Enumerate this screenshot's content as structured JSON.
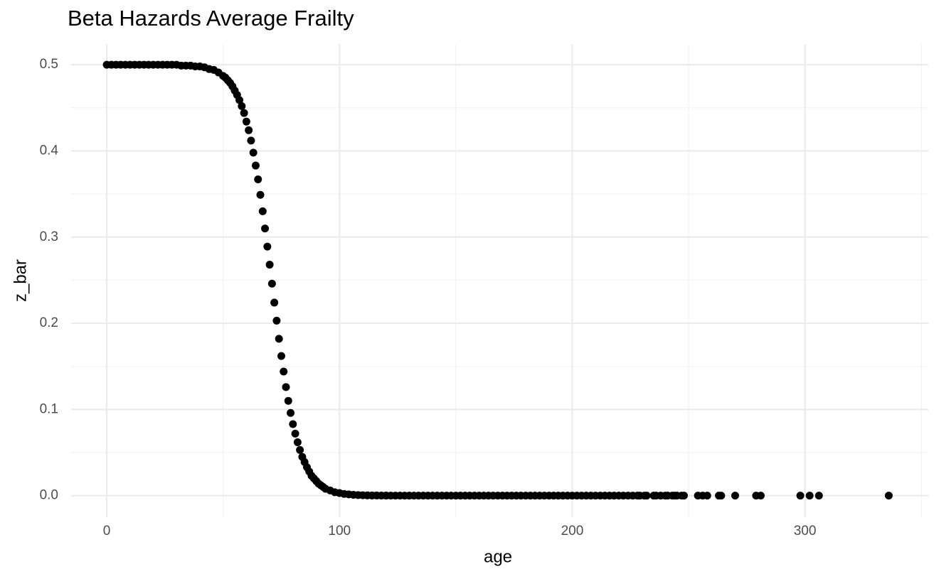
{
  "chart_data": {
    "type": "scatter",
    "title": "Beta Hazards Average Frailty",
    "x_label": "age",
    "y_label": "z_bar",
    "color": "#000000",
    "grid": true,
    "xlim": [
      -15.3,
      353
    ],
    "ylim": [
      -0.025,
      0.524
    ],
    "xticks": [
      0,
      100,
      200,
      300
    ],
    "yticks": [
      {
        "value": 0,
        "label": "0.0"
      },
      0.1,
      0.2,
      0.3,
      0.4,
      0.5
    ],
    "x": [
      0,
      2,
      4,
      6,
      8,
      10,
      12,
      14,
      16,
      18,
      20,
      22,
      24,
      26,
      28,
      30,
      32,
      34,
      36,
      38,
      40,
      42,
      44,
      46,
      48,
      50,
      51,
      52,
      53,
      54,
      55,
      56,
      57,
      58,
      59,
      60,
      61,
      62,
      63,
      64,
      65,
      66,
      67,
      68,
      69,
      70,
      71,
      72,
      73,
      74,
      75,
      76,
      77,
      78,
      79,
      80,
      81,
      82,
      83,
      84,
      85,
      86,
      87,
      88,
      89,
      90,
      91,
      92,
      93,
      94,
      96,
      98,
      100,
      102,
      104,
      106,
      108,
      110,
      112,
      114,
      116,
      118,
      120,
      122,
      124,
      126,
      128,
      130,
      132,
      134,
      136,
      138,
      140,
      142,
      144,
      146,
      148,
      150,
      152,
      154,
      156,
      158,
      160,
      162,
      164,
      166,
      168,
      170,
      172,
      174,
      176,
      178,
      180,
      182,
      184,
      186,
      188,
      190,
      192,
      194,
      196,
      198,
      200,
      202,
      204,
      206,
      208,
      210,
      212,
      214,
      216,
      218,
      220,
      222,
      224,
      226,
      228,
      229,
      231,
      232,
      235,
      236,
      238,
      240,
      241,
      243,
      244,
      245,
      247,
      248,
      254,
      256,
      258,
      263,
      264,
      270,
      279,
      281,
      298,
      302,
      306,
      336
    ],
    "y": [
      0.5,
      0.5,
      0.5,
      0.5,
      0.5,
      0.5,
      0.5,
      0.5,
      0.5,
      0.5,
      0.5,
      0.5,
      0.5,
      0.5,
      0.5,
      0.5,
      0.499,
      0.499,
      0.499,
      0.498,
      0.498,
      0.497,
      0.495,
      0.494,
      0.491,
      0.487,
      0.485,
      0.482,
      0.479,
      0.475,
      0.47,
      0.465,
      0.459,
      0.452,
      0.444,
      0.434,
      0.424,
      0.412,
      0.398,
      0.383,
      0.367,
      0.349,
      0.33,
      0.31,
      0.289,
      0.268,
      0.246,
      0.224,
      0.203,
      0.182,
      0.162,
      0.144,
      0.126,
      0.11,
      0.096,
      0.083,
      0.072,
      0.062,
      0.053,
      0.045,
      0.039,
      0.033,
      0.028,
      0.023,
      0.02,
      0.017,
      0.014,
      0.012,
      0.01,
      0.008,
      0.006,
      0.004,
      0.003,
      0.002,
      0.0015,
      0.001,
      0.0007,
      0.0005,
      0.0003,
      0.0002,
      0.0002,
      0.0001,
      0.0001,
      0,
      0,
      0,
      0,
      0,
      0,
      0,
      0,
      0,
      0,
      0,
      0,
      0,
      0,
      0,
      0,
      0,
      0,
      0,
      0,
      0,
      0,
      0,
      0,
      0,
      0,
      0,
      0,
      0,
      0,
      0,
      0,
      0,
      0,
      0,
      0,
      0,
      0,
      0,
      0,
      0,
      0,
      0,
      0,
      0,
      0,
      0,
      0,
      0,
      0,
      0,
      0,
      0,
      0,
      0,
      0,
      0,
      0,
      0,
      0,
      0,
      0,
      0,
      0,
      0,
      0,
      0,
      0,
      0,
      0,
      0,
      0,
      0,
      0,
      0,
      0,
      0,
      0,
      0
    ]
  }
}
